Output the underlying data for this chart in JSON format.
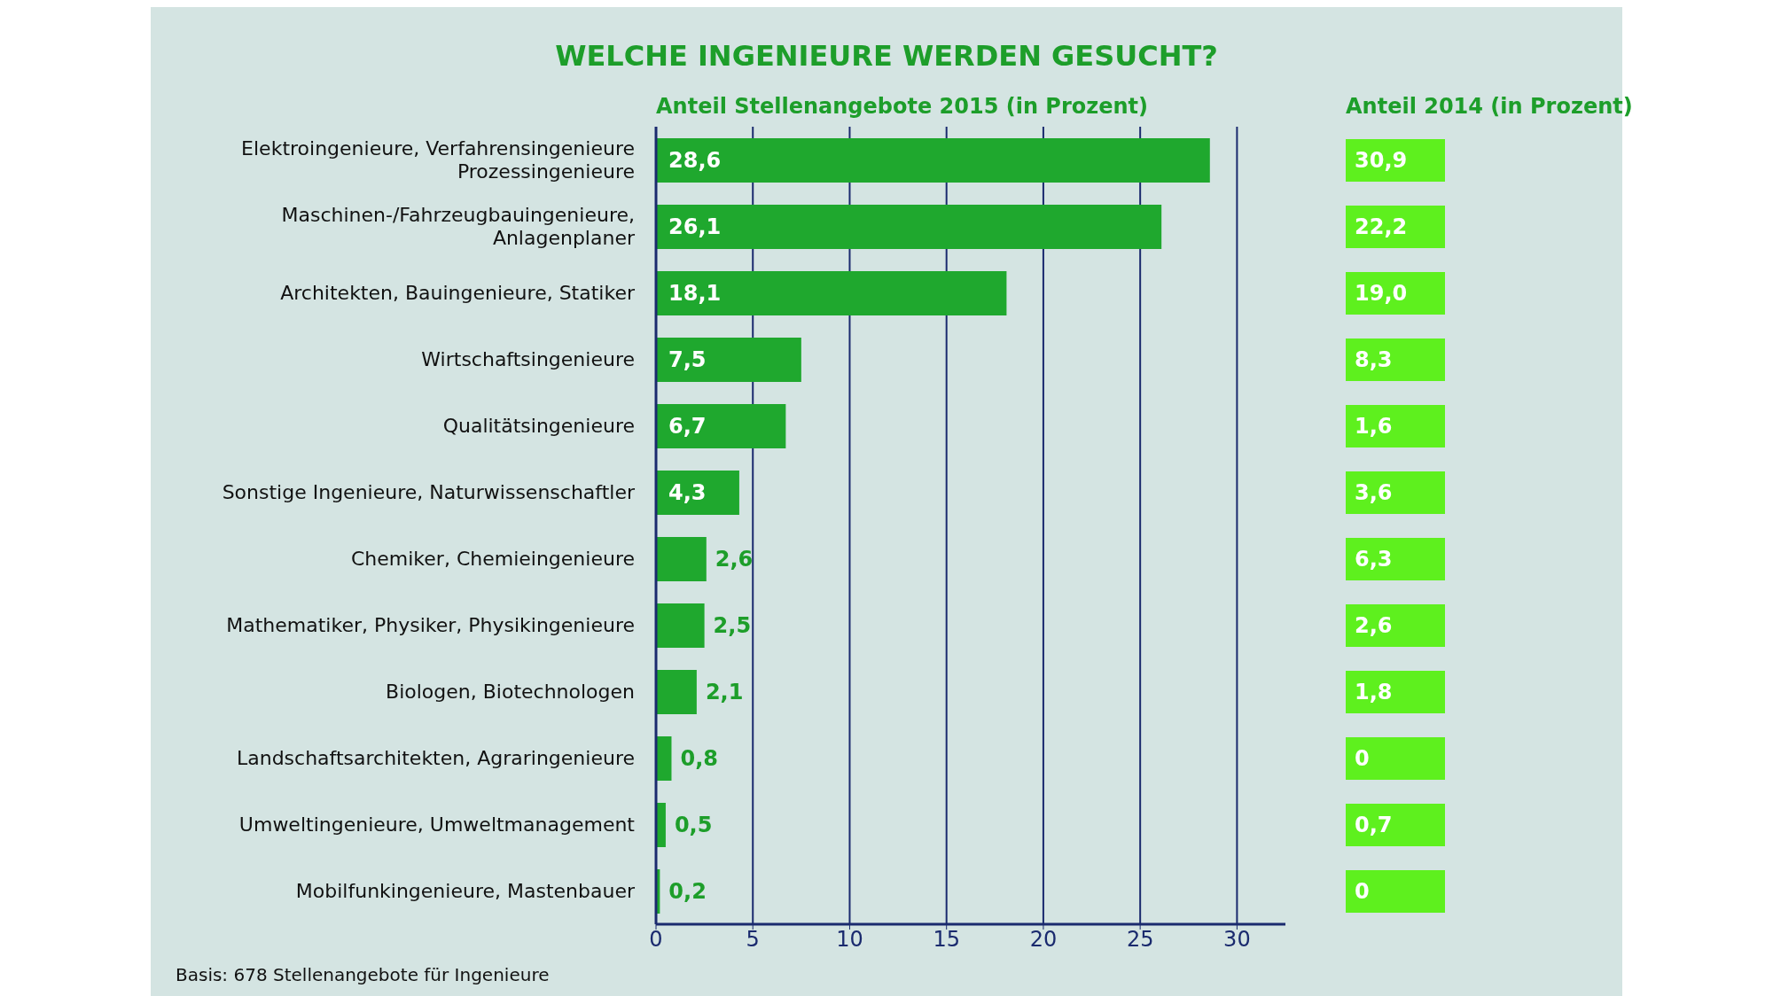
{
  "chart_data": [
    {
      "type": "bar",
      "orientation": "horizontal",
      "title": "WELCHE INGENIEURE WERDEN GESUCHT?",
      "categories": [
        "Elektroingenieure, Verfahrensingenieure Prozessingenieure",
        "Maschinen-/Fahrzeugbauingenieure, Anlagenplaner",
        "Architekten, Bauingenieure, Statiker",
        "Wirtschaftsingenieure",
        "Qualitätsingenieure",
        "Sonstige Ingenieure, Naturwissenschaftler",
        "Chemiker, Chemieingenieure",
        "Mathematiker, Physiker, Physikingenieure",
        "Biologen, Biotechnologen",
        "Landschaftsarchitekten, Agraringenieure",
        "Umweltingenieure, Umweltmanagement",
        "Mobilfunkingenieure, Mastenbauer"
      ],
      "series": [
        {
          "name": "Anteil Stellenangebote 2015 (in Prozent)",
          "color": "#1fa82e",
          "values": [
            28.6,
            26.1,
            18.1,
            7.5,
            6.7,
            4.3,
            2.6,
            2.5,
            2.1,
            0.8,
            0.5,
            0.2
          ],
          "value_labels": [
            "28,6",
            "26,1",
            "18,1",
            "7,5",
            "6,7",
            "4,3",
            "2,6",
            "2,5",
            "2,1",
            "0,8",
            "0,5",
            "0,2"
          ]
        }
      ],
      "xlim": [
        0,
        32.5
      ],
      "xticks": [
        0,
        5,
        10,
        15,
        20,
        25,
        30
      ],
      "grid": "x",
      "legend": false,
      "annotations": [
        "Basis: 678 Stellenangebote für Ingenieure"
      ]
    },
    {
      "type": "other",
      "title": "Anteil 2014 (in Prozent)",
      "color": "#5ef01e",
      "value_labels": [
        "30,9",
        "22,2",
        "19,0",
        "8,3",
        "1,6",
        "3,6",
        "6,3",
        "2,6",
        "1,8",
        "0",
        "0,7",
        "0"
      ]
    }
  ]
}
